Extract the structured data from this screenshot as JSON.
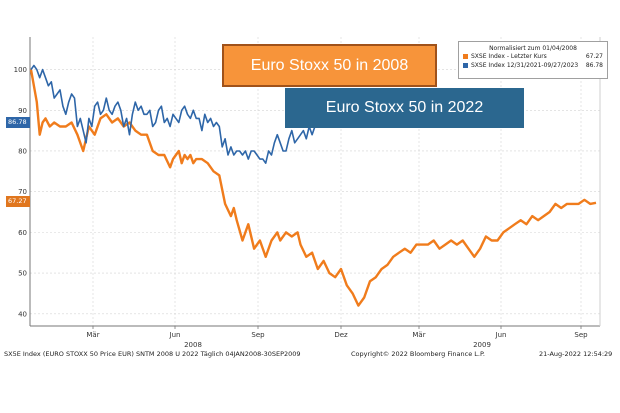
{
  "chart_data": {
    "type": "line",
    "ylim": [
      37,
      108
    ],
    "yticks": [
      40,
      50,
      60,
      70,
      80,
      90,
      100
    ],
    "xticks": [
      "Mär",
      "Jun",
      "Sep",
      "Dez",
      "Mär",
      "Jun",
      "Sep"
    ],
    "year_labels": [
      "2008",
      "2009"
    ],
    "grid": true,
    "legend_position": "top-right",
    "legend_header": "Normalisiert zum 01/04/2008",
    "series": [
      {
        "name": "SXSE Index - Letzter Kurs",
        "value_label": "67.27",
        "color": "#f07c1c",
        "x": [
          0,
          2,
          4,
          6,
          8,
          10,
          13,
          16,
          20,
          24,
          28,
          32,
          36,
          40,
          44,
          48,
          52,
          56,
          60,
          64,
          68,
          72,
          76,
          80,
          84,
          88,
          92,
          96,
          98,
          100,
          102,
          104,
          106,
          108,
          110,
          112,
          114,
          118,
          122,
          126,
          130,
          134,
          138,
          140,
          142,
          146,
          150,
          154,
          158,
          162,
          166,
          170,
          172,
          176,
          180,
          184,
          186,
          190,
          194,
          198,
          202,
          206,
          210,
          214,
          218,
          222,
          226,
          230,
          234,
          238,
          242,
          246,
          250,
          254,
          258,
          262,
          266,
          270,
          274,
          278,
          282,
          286,
          290,
          294,
          298,
          302,
          306,
          310,
          314,
          318,
          322,
          326,
          330,
          334,
          338,
          342,
          346,
          350,
          354,
          358,
          362,
          366,
          370,
          374,
          378,
          382,
          386,
          390
        ],
        "y": [
          100,
          96,
          92,
          84,
          87,
          88,
          86,
          87,
          86,
          86,
          87,
          84,
          80,
          86,
          84,
          88,
          89,
          87,
          88,
          86,
          87,
          85,
          84,
          84,
          80,
          79,
          79,
          76,
          78,
          79,
          80,
          77,
          79,
          78,
          79,
          77,
          78,
          78,
          77,
          75,
          74,
          67,
          64,
          66,
          63,
          58,
          62,
          56,
          58,
          54,
          58,
          60,
          58,
          60,
          59,
          60,
          57,
          54,
          55,
          51,
          53,
          50,
          49,
          51,
          47,
          45,
          42,
          44,
          48,
          49,
          51,
          52,
          54,
          55,
          56,
          55,
          57,
          57,
          57,
          58,
          56,
          57,
          58,
          57,
          58,
          56,
          54,
          56,
          59,
          58,
          58,
          60,
          61,
          62,
          63,
          62,
          64,
          63,
          64,
          65,
          67,
          66,
          67,
          67,
          67,
          68,
          67,
          67.27
        ]
      },
      {
        "name": "SXSE Index 12/31/2021-09/27/2023",
        "value_label": "86.78",
        "color": "#2e66a8",
        "x": [
          0,
          2,
          4,
          6,
          8,
          10,
          12,
          14,
          16,
          18,
          20,
          22,
          24,
          26,
          28,
          30,
          32,
          34,
          36,
          38,
          40,
          42,
          44,
          46,
          48,
          50,
          52,
          54,
          56,
          58,
          60,
          62,
          64,
          66,
          68,
          70,
          72,
          74,
          76,
          78,
          80,
          82,
          84,
          86,
          88,
          90,
          92,
          94,
          96,
          98,
          100,
          102,
          104,
          106,
          108,
          110,
          112,
          114,
          116,
          118,
          120,
          122,
          124,
          126,
          128,
          130,
          132,
          134,
          136,
          138,
          140,
          142,
          144,
          146,
          148,
          150,
          152,
          154,
          156,
          158,
          160,
          162,
          164,
          166,
          168,
          170,
          172,
          174,
          176,
          178,
          180,
          182,
          184,
          186,
          188,
          190,
          192,
          194,
          196,
          198,
          200,
          202,
          204
        ],
        "y": [
          100,
          101,
          100,
          98,
          100,
          98,
          96,
          97,
          93,
          94,
          95,
          91,
          89,
          92,
          94,
          93,
          86,
          88,
          85,
          82,
          88,
          86,
          91,
          92,
          89,
          90,
          93,
          90,
          89,
          91,
          92,
          90,
          86,
          88,
          84,
          89,
          92,
          90,
          91,
          89,
          89,
          90,
          86,
          87,
          90,
          91,
          87,
          88,
          86,
          89,
          88,
          87,
          90,
          91,
          89,
          88,
          90,
          88,
          88,
          85,
          89,
          87,
          88,
          86,
          87,
          86,
          81,
          83,
          79,
          81,
          79,
          80,
          80,
          79,
          80,
          78,
          80,
          80,
          79,
          78,
          78,
          77,
          80,
          79,
          82,
          84,
          82,
          80,
          80,
          83,
          85,
          82,
          83,
          84,
          85,
          83,
          86,
          84,
          86,
          87,
          86,
          87,
          86.78
        ]
      }
    ]
  },
  "banners": {
    "orange": "Euro Stoxx 50 in 2008",
    "blue": "Euro Stoxx 50 in 2022",
    "orange_color": "#f7943a",
    "blue_color": "#2b678f"
  },
  "legend": {
    "header": "Normalisiert zum 01/04/2008",
    "row1_label": "SXSE Index - Letzter Kurs",
    "row1_value": "67.27",
    "row2_label": "SXSE Index 12/31/2021-09/27/2023",
    "row2_value": "86.78"
  },
  "badges": {
    "blue": "86.78",
    "orange": "67.27"
  },
  "footer": {
    "left": "SX5E Index (EURO STOXX 50 Price EUR) SNTM 2008 U 2022  Täglich 04JAN2008-30SEP2009",
    "center": "Copyright© 2022 Bloomberg Finance L.P.",
    "right": "21-Aug-2022 12:54:29"
  }
}
